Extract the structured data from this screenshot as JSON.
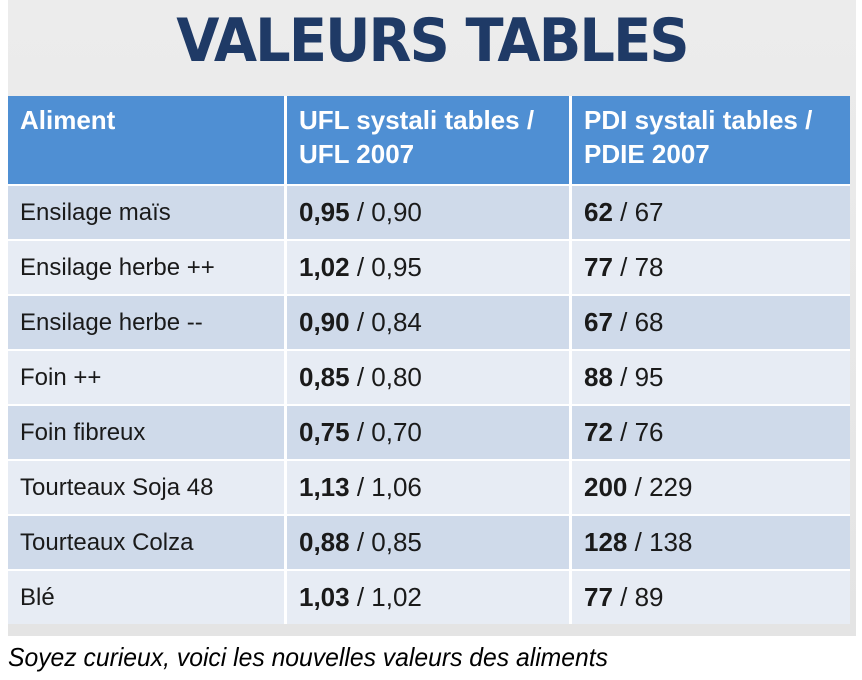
{
  "title": "VALEURS TABLES",
  "table": {
    "headers": [
      "Aliment",
      "UFL systali tables / UFL 2007",
      "PDI systali tables / PDIE 2007"
    ],
    "rows": [
      {
        "aliment": "Ensilage maïs",
        "ufl_new": "0,95",
        "ufl_old": "0,90",
        "pdi_new": "62",
        "pdi_old": "67"
      },
      {
        "aliment": "Ensilage herbe ++",
        "ufl_new": "1,02",
        "ufl_old": "0,95",
        "pdi_new": "77",
        "pdi_old": "78"
      },
      {
        "aliment": "Ensilage herbe --",
        "ufl_new": "0,90",
        "ufl_old": "0,84",
        "pdi_new": "67",
        "pdi_old": "68"
      },
      {
        "aliment": "Foin ++",
        "ufl_new": "0,85",
        "ufl_old": "0,80",
        "pdi_new": "88",
        "pdi_old": "95"
      },
      {
        "aliment": "Foin fibreux",
        "ufl_new": "0,75",
        "ufl_old": "0,70",
        "pdi_new": "72",
        "pdi_old": "76"
      },
      {
        "aliment": "Tourteaux Soja 48",
        "ufl_new": "1,13",
        "ufl_old": "1,06",
        "pdi_new": "200",
        "pdi_old": "229"
      },
      {
        "aliment": "Tourteaux Colza",
        "ufl_new": "0,88",
        "ufl_old": "0,85",
        "pdi_new": "128",
        "pdi_old": "138"
      },
      {
        "aliment": "Blé",
        "ufl_new": "1,03",
        "ufl_old": "1,02",
        "pdi_new": "77",
        "pdi_old": "89"
      }
    ]
  },
  "separator": " / ",
  "caption": "Soyez curieux, voici les nouvelles valeurs des aliments",
  "colors": {
    "title": "#1f3a66",
    "header_bg": "#4f8fd3",
    "row_dark": "#cfdaea",
    "row_light": "#e7ecf4"
  }
}
